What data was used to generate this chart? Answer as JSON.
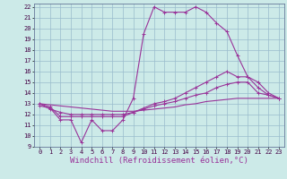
{
  "xlabel": "Windchill (Refroidissement éolien,°C)",
  "xlim": [
    -0.5,
    23.5
  ],
  "ylim": [
    9,
    22.3
  ],
  "xticks": [
    0,
    1,
    2,
    3,
    4,
    5,
    6,
    7,
    8,
    9,
    10,
    11,
    12,
    13,
    14,
    15,
    16,
    17,
    18,
    19,
    20,
    21,
    22,
    23
  ],
  "yticks": [
    9,
    10,
    11,
    12,
    13,
    14,
    15,
    16,
    17,
    18,
    19,
    20,
    21,
    22
  ],
  "bg_color": "#cceae8",
  "line_color": "#993399",
  "grid_color": "#99bbcc",
  "line1_x": [
    0,
    1,
    2,
    3,
    4,
    5,
    6,
    7,
    8,
    9,
    10,
    11,
    12,
    13,
    14,
    15,
    16,
    17,
    18,
    19,
    20,
    21,
    22,
    23
  ],
  "line1_y": [
    12.8,
    12.6,
    11.5,
    11.5,
    9.4,
    11.5,
    10.5,
    10.5,
    11.5,
    13.5,
    19.5,
    22.0,
    21.5,
    21.5,
    21.5,
    22.0,
    21.5,
    20.5,
    19.7,
    17.5,
    15.5,
    15.0,
    14.0,
    13.5
  ],
  "line2_x": [
    0,
    1,
    2,
    3,
    4,
    5,
    6,
    7,
    8,
    9,
    10,
    11,
    12,
    13,
    14,
    15,
    16,
    17,
    18,
    19,
    20,
    21,
    22,
    23
  ],
  "line2_y": [
    13.0,
    12.7,
    11.8,
    11.8,
    11.8,
    11.8,
    11.8,
    11.8,
    11.8,
    12.2,
    12.6,
    13.0,
    13.2,
    13.5,
    14.0,
    14.5,
    15.0,
    15.5,
    16.0,
    15.5,
    15.5,
    14.5,
    13.8,
    13.5
  ],
  "line3_x": [
    0,
    1,
    2,
    3,
    4,
    5,
    6,
    7,
    8,
    9,
    10,
    11,
    12,
    13,
    14,
    15,
    16,
    17,
    18,
    19,
    20,
    21,
    22,
    23
  ],
  "line3_y": [
    13.0,
    12.5,
    12.2,
    12.0,
    12.0,
    12.0,
    12.0,
    12.0,
    12.0,
    12.2,
    12.5,
    12.8,
    13.0,
    13.2,
    13.5,
    13.8,
    14.0,
    14.5,
    14.8,
    15.0,
    15.0,
    14.0,
    13.8,
    13.5
  ],
  "line4_x": [
    0,
    1,
    2,
    3,
    4,
    5,
    6,
    7,
    8,
    9,
    10,
    11,
    12,
    13,
    14,
    15,
    16,
    17,
    18,
    19,
    20,
    21,
    22,
    23
  ],
  "line4_y": [
    13.0,
    12.9,
    12.8,
    12.7,
    12.6,
    12.5,
    12.4,
    12.3,
    12.3,
    12.3,
    12.4,
    12.5,
    12.6,
    12.7,
    12.9,
    13.0,
    13.2,
    13.3,
    13.4,
    13.5,
    13.5,
    13.5,
    13.5,
    13.5
  ],
  "tick_fontsize": 5.0,
  "xlabel_fontsize": 6.5,
  "linewidth": 0.8,
  "markersize": 2.5
}
